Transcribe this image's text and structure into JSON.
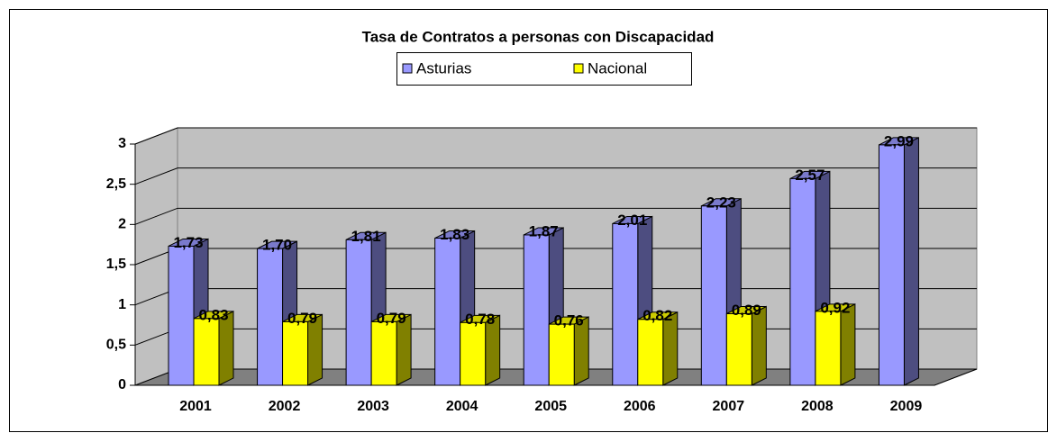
{
  "chart_data": {
    "type": "bar3d",
    "title": "Tasa de Contratos a personas con Discapacidad",
    "categories": [
      "2001",
      "2002",
      "2003",
      "2004",
      "2005",
      "2006",
      "2007",
      "2008",
      "2009"
    ],
    "series": [
      {
        "name": "Asturias",
        "color": "#9999ff",
        "values": [
          1.73,
          1.7,
          1.81,
          1.83,
          1.87,
          2.01,
          2.23,
          2.57,
          2.99
        ],
        "value_labels": [
          "1,73",
          "1,70",
          "1,81",
          "1,83",
          "1,87",
          "2,01",
          "2,23",
          "2,57",
          "2,99"
        ]
      },
      {
        "name": "Nacional",
        "color": "#ffff00",
        "values": [
          0.83,
          0.79,
          0.79,
          0.78,
          0.76,
          0.82,
          0.89,
          0.92,
          null
        ],
        "value_labels": [
          "0,83",
          "0,79",
          "0,79",
          "0,78",
          "0,76",
          "0,82",
          "0,89",
          "0,92",
          null
        ]
      }
    ],
    "ylim": [
      0,
      3
    ],
    "yticks": [
      0,
      {
        "value": 0.5,
        "label": "0,5"
      },
      1,
      {
        "value": 1.5,
        "label": "1,5"
      },
      2,
      {
        "value": 2.5,
        "label": "2,5"
      },
      3
    ],
    "grid": true
  }
}
